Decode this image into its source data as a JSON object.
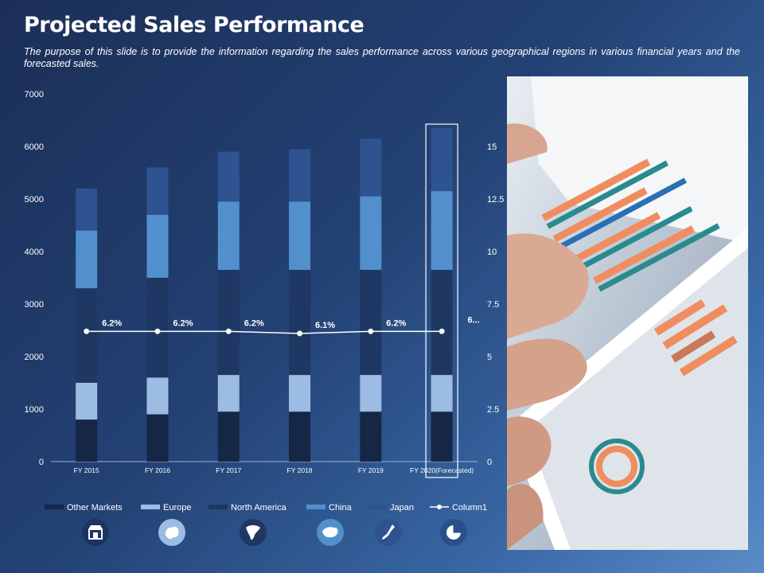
{
  "header": {
    "title": "Projected Sales Performance",
    "subtitle": "The purpose of this slide is to provide the information regarding the sales performance across various geographical regions in various financial years and the forecasted sales."
  },
  "chart_data": {
    "type": "bar",
    "stacked": true,
    "categories": [
      "FY 2015",
      "FY 2016",
      "FY 2017",
      "FY 2018",
      "FY 2019",
      "FY 2020(Forecasted)"
    ],
    "series": [
      {
        "name": "Other Markets",
        "color": "#162645",
        "values": [
          800,
          900,
          950,
          950,
          950,
          950
        ]
      },
      {
        "name": "Europe",
        "color": "#9dbce3",
        "values": [
          700,
          700,
          700,
          700,
          700,
          700
        ]
      },
      {
        "name": "North America",
        "color": "#1e3763",
        "values": [
          1800,
          1900,
          2000,
          2000,
          2000,
          2000
        ]
      },
      {
        "name": "China",
        "color": "#5290cd",
        "values": [
          1100,
          1200,
          1300,
          1300,
          1400,
          1500
        ]
      },
      {
        "name": "Japan",
        "color": "#2e5390",
        "values": [
          800,
          900,
          950,
          1000,
          1100,
          1200
        ]
      }
    ],
    "line_series": {
      "name": "Column1",
      "color": "#ffffff",
      "axis": "secondary",
      "values": [
        6.2,
        6.2,
        6.2,
        6.1,
        6.2,
        6.2
      ],
      "labels": [
        "6.2%",
        "6.2%",
        "6.2%",
        "6.1%",
        "6.2%",
        "6..."
      ]
    },
    "y_axis": {
      "min": 0,
      "max": 7000,
      "ticks": [
        "0",
        "1000",
        "2000",
        "3000",
        "4000",
        "5000",
        "6000",
        "7000"
      ]
    },
    "y2_axis": {
      "min": 0,
      "max": 17.5,
      "ticks": [
        "0",
        "2.5",
        "5",
        "7.5",
        "10",
        "12.5",
        "15"
      ]
    },
    "legend_position": "bottom",
    "highlighted_category": "FY 2020(Forecasted)",
    "grid": false
  },
  "icons": [
    {
      "name": "store-icon",
      "bg": "#1c3462"
    },
    {
      "name": "europe-map-icon",
      "bg": "#9dbce3"
    },
    {
      "name": "north-america-map-icon",
      "bg": "#1e3763"
    },
    {
      "name": "china-map-icon",
      "bg": "#5290cd"
    },
    {
      "name": "japan-map-icon",
      "bg": "#2e5390"
    },
    {
      "name": "pie-chart-icon",
      "bg": "#2a4f8c"
    }
  ]
}
